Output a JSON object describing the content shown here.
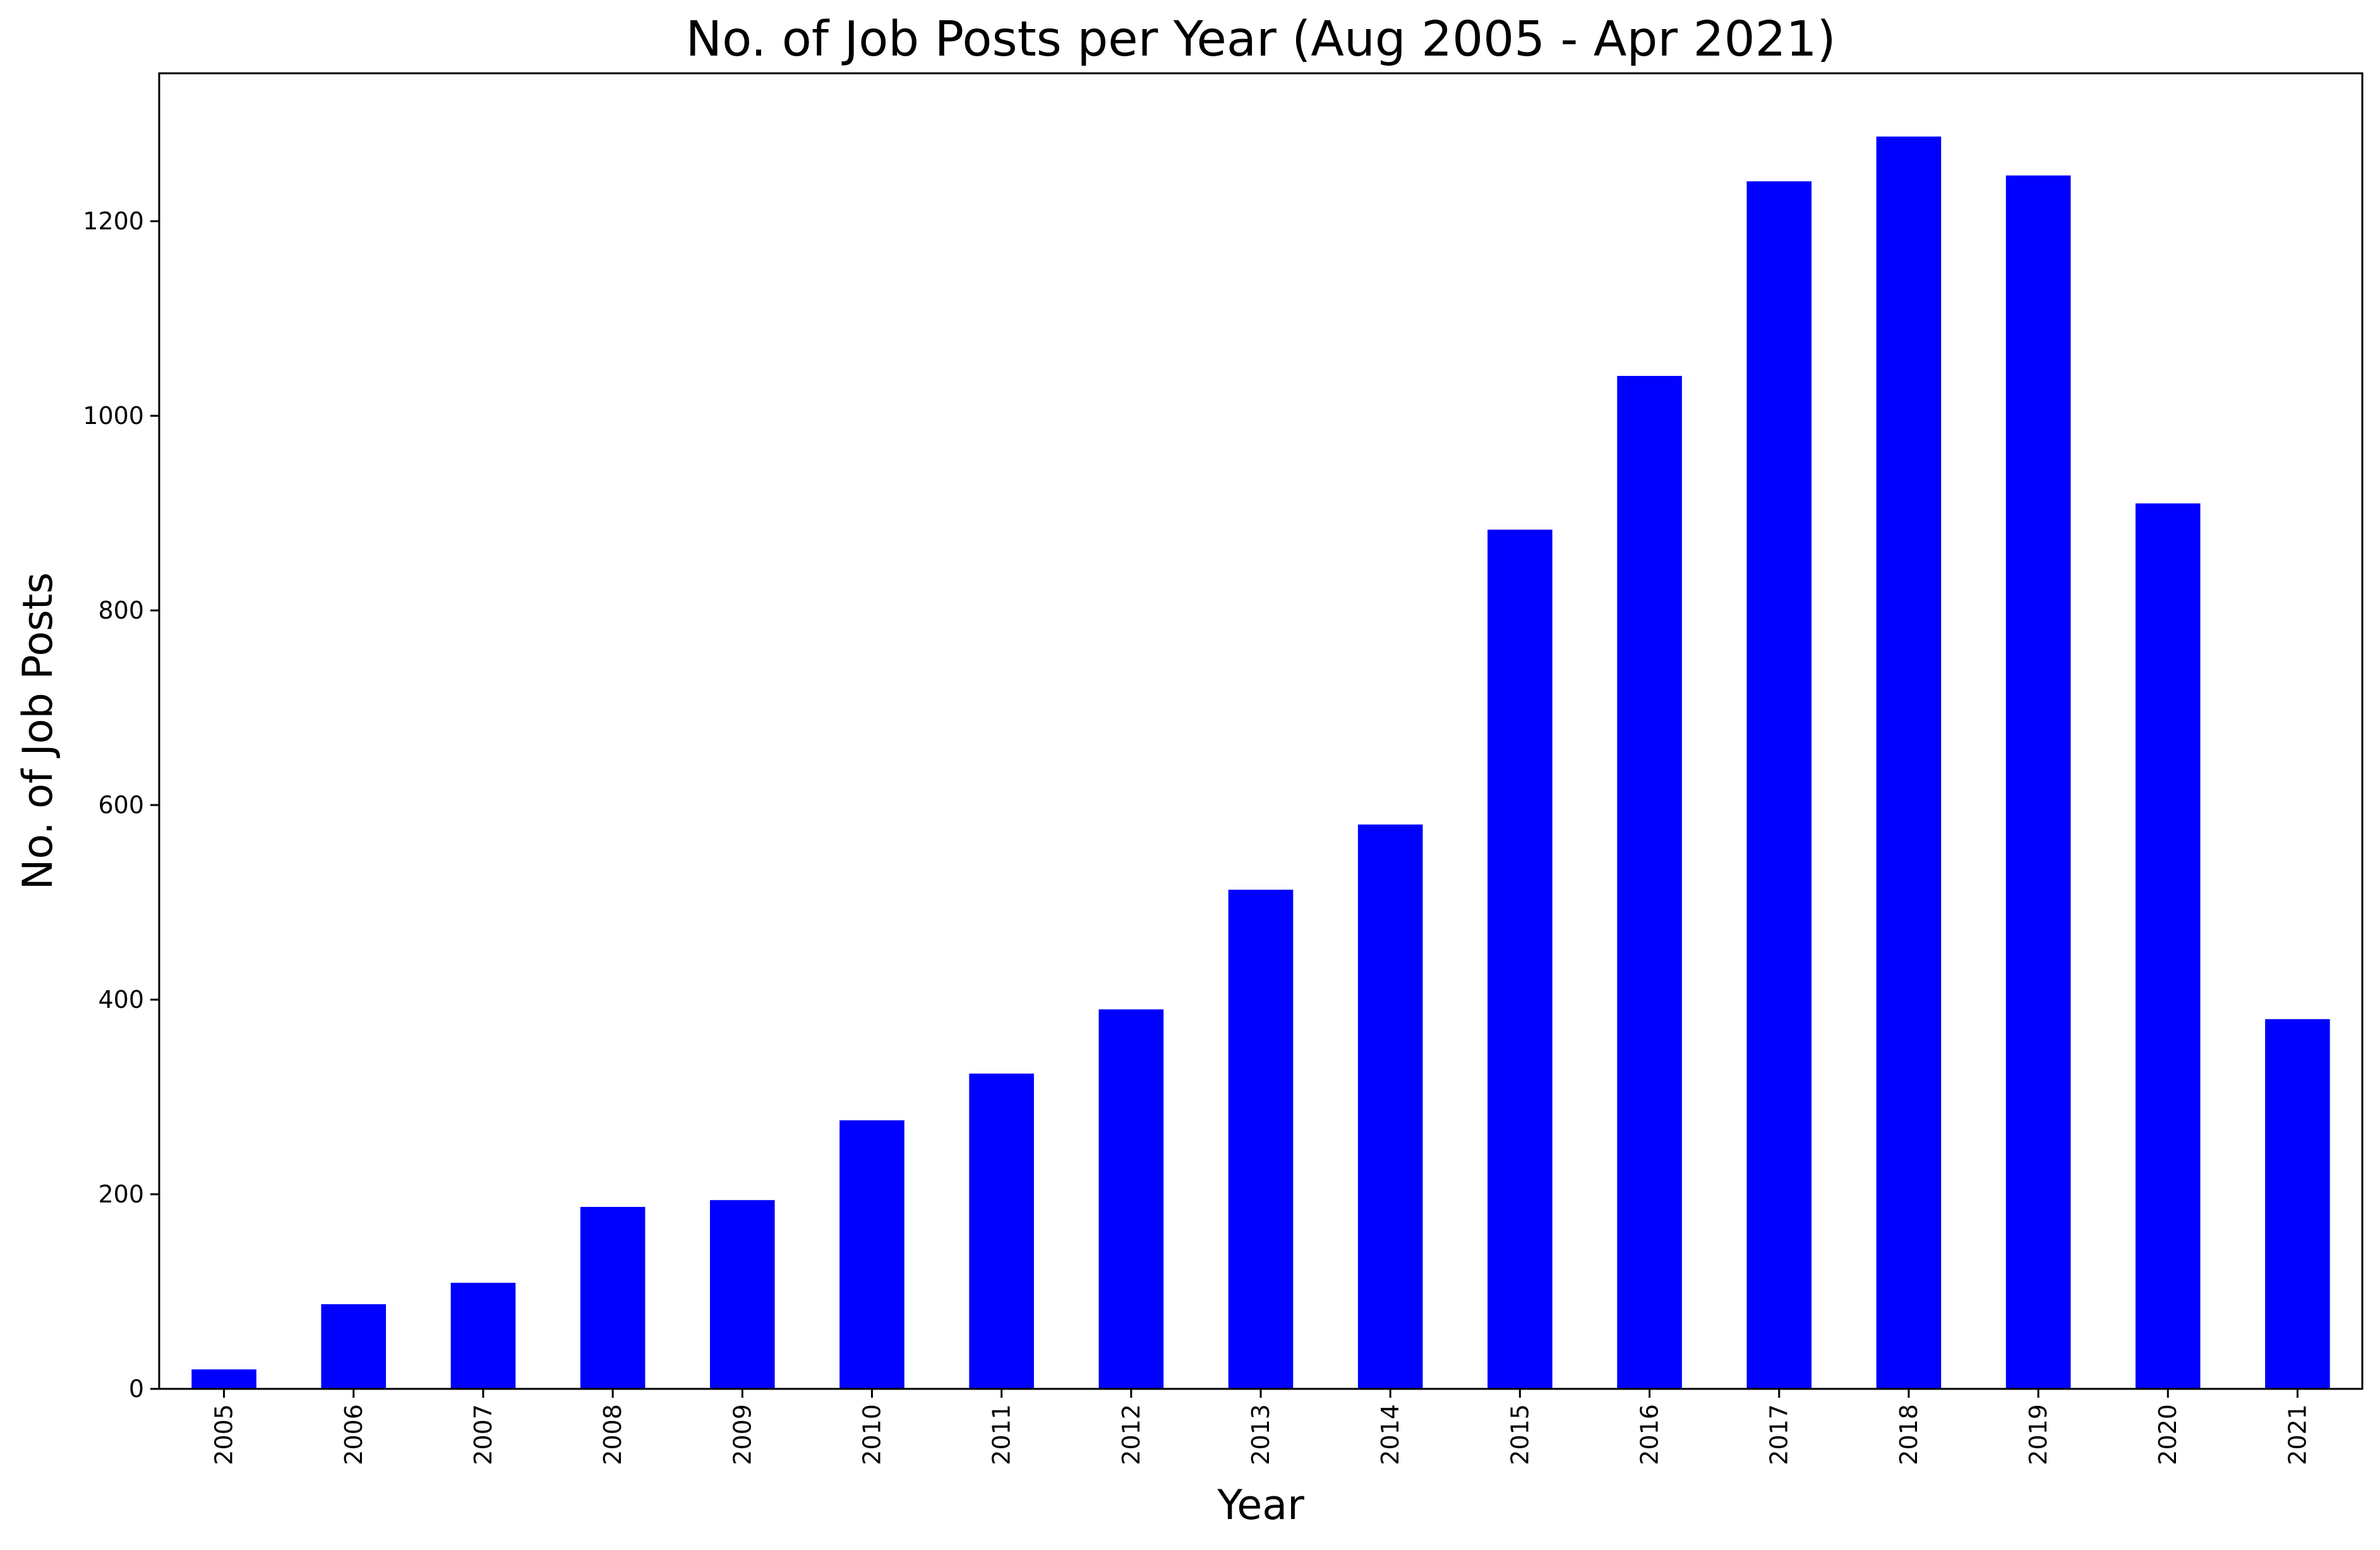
{
  "chart_data": {
    "type": "bar",
    "title": "No. of Job Posts per Year (Aug 2005 - Apr 2021)",
    "xlabel": "Year",
    "ylabel": "No. of Job Posts",
    "categories": [
      "2005",
      "2006",
      "2007",
      "2008",
      "2009",
      "2010",
      "2011",
      "2012",
      "2013",
      "2014",
      "2015",
      "2016",
      "2017",
      "2018",
      "2019",
      "2020",
      "2021"
    ],
    "values": [
      20,
      87,
      109,
      187,
      194,
      276,
      324,
      390,
      513,
      580,
      883,
      1041,
      1241,
      1287,
      1247,
      910,
      380
    ],
    "ylim": [
      0,
      1352
    ],
    "yticks": [
      0,
      200,
      400,
      600,
      800,
      1000,
      1200
    ],
    "bar_color": "#0000ff",
    "grid": false,
    "legend": "none"
  }
}
